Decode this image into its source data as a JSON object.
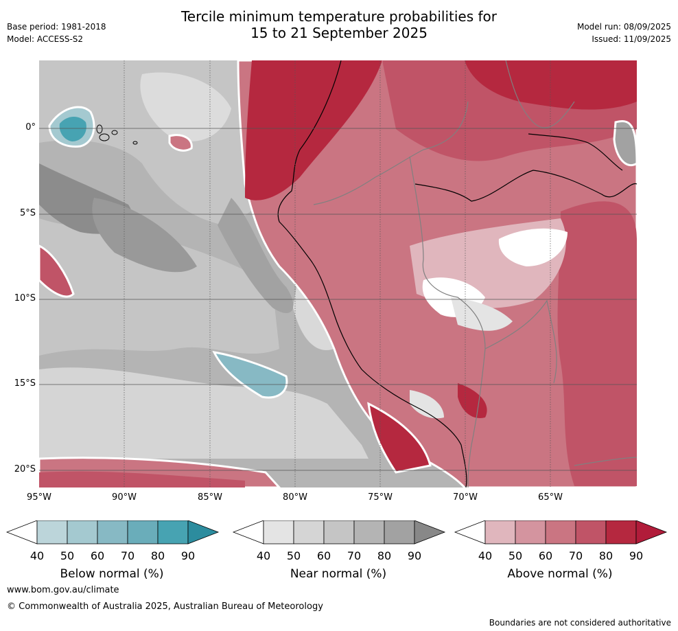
{
  "title_line1": "Tercile minimum temperature probabilities for",
  "title_line2": "15 to 21 September 2025",
  "base_period": "Base period: 1981-2018",
  "model": "Model: ACCESS-S2",
  "model_run": "Model run: 08/09/2025",
  "issued": "Issued: 11/09/2025",
  "map": {
    "lon_ticks": [
      "95°W",
      "90°W",
      "85°W",
      "80°W",
      "75°W",
      "70°W",
      "65°W"
    ],
    "lat_ticks": [
      "0°",
      "5°S",
      "10°S",
      "15°S",
      "20°S"
    ]
  },
  "colorbars": [
    {
      "label": "Below normal (%)",
      "ticks": [
        "40",
        "50",
        "60",
        "70",
        "80",
        "90"
      ],
      "colors": [
        "#ffffff",
        "#bcd5da",
        "#a4c9d0",
        "#87b9c4",
        "#6aadba",
        "#47a3b2",
        "#2c8c9e"
      ]
    },
    {
      "label": "Near normal (%)",
      "ticks": [
        "40",
        "50",
        "60",
        "70",
        "80",
        "90"
      ],
      "colors": [
        "#ffffff",
        "#e4e4e4",
        "#d5d5d5",
        "#c5c5c5",
        "#b4b4b4",
        "#a2a2a2",
        "#888888"
      ]
    },
    {
      "label": "Above normal (%)",
      "ticks": [
        "40",
        "50",
        "60",
        "70",
        "80",
        "90"
      ],
      "colors": [
        "#ffffff",
        "#e0b6bd",
        "#d4949f",
        "#ca7582",
        "#c05467",
        "#b5283f",
        "#b11c3a"
      ]
    }
  ],
  "footer": {
    "url": "www.bom.gov.au/climate",
    "copyright": "© Commonwealth of Australia 2025, Australian Bureau of Meteorology",
    "disclaimer": "Boundaries are not considered authoritative"
  }
}
